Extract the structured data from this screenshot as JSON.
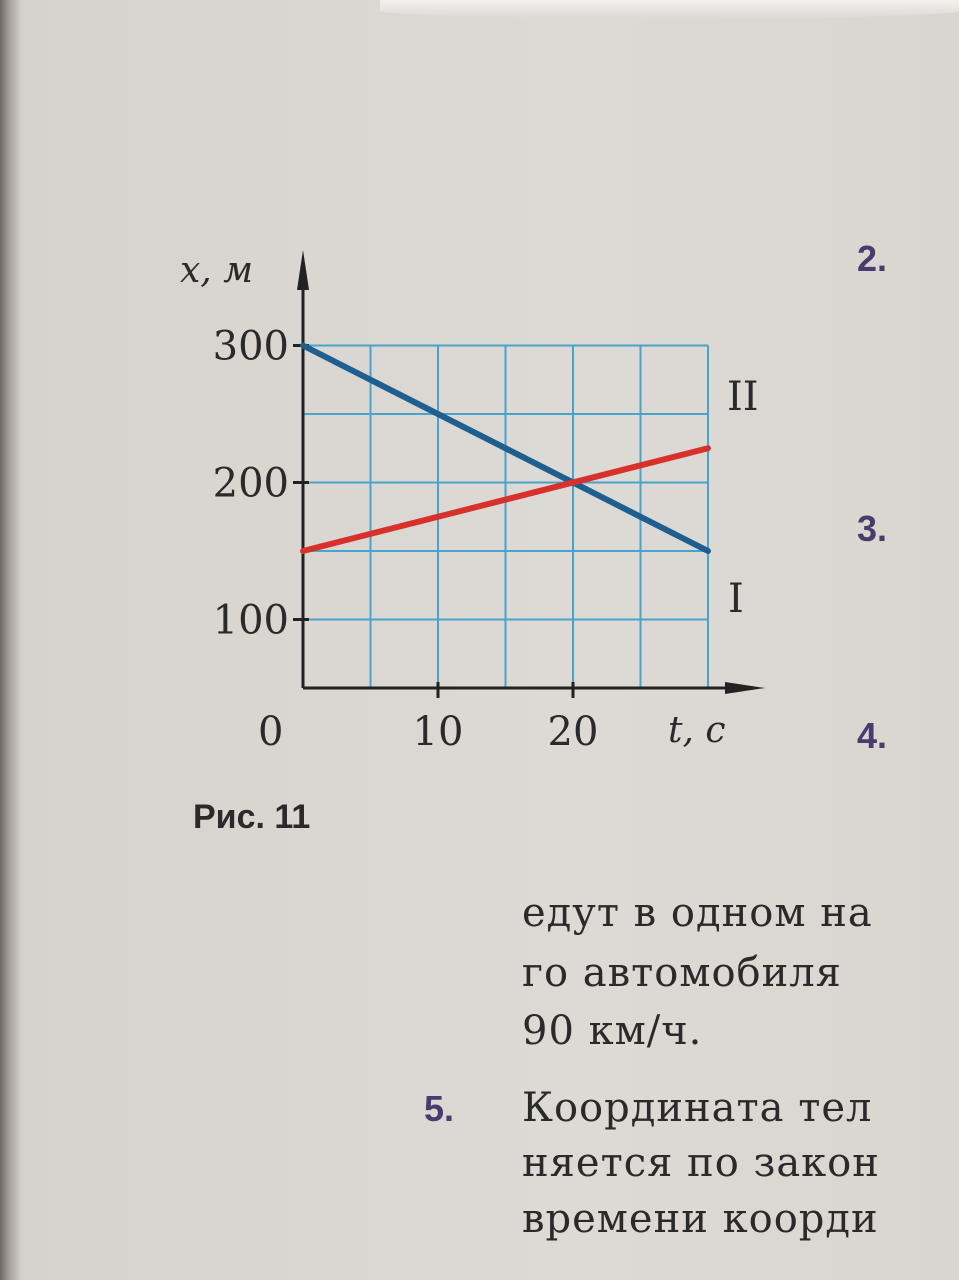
{
  "chart_data": {
    "type": "line",
    "xlabel": "t, с",
    "ylabel": "x, м",
    "xlim": [
      0,
      30
    ],
    "ylim": [
      50,
      300
    ],
    "origin_label": "0",
    "x_ticks": [
      10,
      20
    ],
    "y_ticks": [
      100,
      200,
      300
    ],
    "grid": true,
    "grid_step_x": 5,
    "grid_step_y": 50,
    "grid_color": "#4aa3cc",
    "series": [
      {
        "name": "I",
        "x": [
          0,
          30
        ],
        "y": [
          300,
          150
        ],
        "color": "#1f5f8f"
      },
      {
        "name": "II",
        "x": [
          0,
          30
        ],
        "y": [
          150,
          225
        ],
        "color": "#d8302a"
      }
    ]
  },
  "caption": "Рис. 11",
  "question_numbers": [
    "2.",
    "3.",
    "4.",
    "5."
  ],
  "text_lines": [
    "едут в одном на",
    "го  автомобиля",
    "90 км/ч.",
    "Координата тел",
    "няется по закон",
    "времени коорди"
  ]
}
